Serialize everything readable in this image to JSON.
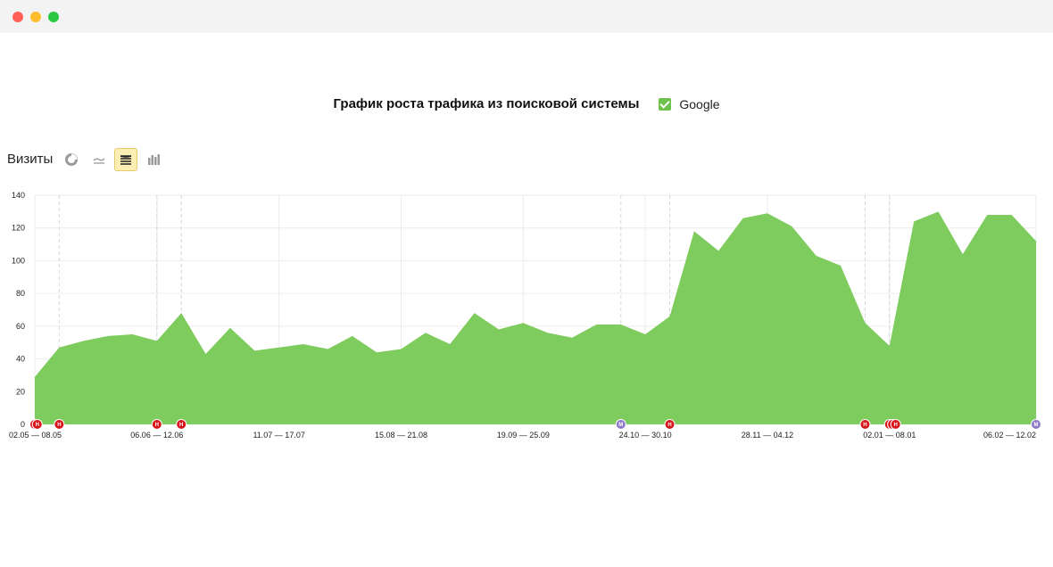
{
  "window": {
    "controls": [
      "close",
      "minimize",
      "zoom"
    ]
  },
  "colors": {
    "area": "#7ecb5e",
    "grid": "#ececec",
    "marker_red": "#d7141a",
    "marker_purple": "#8e78c8",
    "legend_check": "#6cc24a",
    "active_button": "#fdeeb4"
  },
  "header": {
    "title": "График роста трафика из поисковой системы",
    "legend_label": "Google",
    "legend_checked": true
  },
  "toolbar": {
    "metric_label": "Визиты",
    "buttons": [
      {
        "icon": "pie-chart-icon",
        "active": false
      },
      {
        "icon": "line-chart-icon",
        "active": false
      },
      {
        "icon": "stacked-area-icon",
        "active": true
      },
      {
        "icon": "bar-chart-icon",
        "active": false
      }
    ]
  },
  "chart_data": {
    "type": "area",
    "title": "График роста трафика из поисковой системы",
    "ylim": [
      0,
      140
    ],
    "yticks": [
      0,
      20,
      40,
      60,
      80,
      100,
      120,
      140
    ],
    "grid": true,
    "legend": "top",
    "series": [
      {
        "name": "Google",
        "values": [
          29,
          47,
          51,
          54,
          55,
          51,
          68,
          43,
          59,
          45,
          47,
          49,
          46,
          54,
          44,
          46,
          56,
          49,
          68,
          58,
          62,
          56,
          53,
          61,
          61,
          55,
          66,
          118,
          106,
          126,
          129,
          121,
          103,
          97,
          62,
          48,
          124,
          130,
          104,
          128,
          128,
          112
        ]
      }
    ],
    "x_tick_labels": [
      {
        "index": 0,
        "label": "02.05 — 08.05"
      },
      {
        "index": 5,
        "label": "06.06 — 12.06"
      },
      {
        "index": 10,
        "label": "11.07 — 17.07"
      },
      {
        "index": 15,
        "label": "15.08 — 21.08"
      },
      {
        "index": 20,
        "label": "19.09 — 25.09"
      },
      {
        "index": 25,
        "label": "24.10 — 30.10"
      },
      {
        "index": 30,
        "label": "28.11 — 04.12"
      },
      {
        "index": 35,
        "label": "02.01 — 08.01"
      },
      {
        "index": 41,
        "label": "06.02 — 12.02"
      }
    ],
    "markers": [
      {
        "at": 0,
        "type": "red",
        "label": "Н"
      },
      {
        "at": 0.1,
        "type": "red",
        "label": "Н"
      },
      {
        "at": 1,
        "type": "red",
        "label": "Н"
      },
      {
        "at": 5,
        "type": "red",
        "label": "Н"
      },
      {
        "at": 6,
        "type": "red",
        "label": "Н"
      },
      {
        "at": 24,
        "type": "purple",
        "label": "М"
      },
      {
        "at": 26,
        "type": "red",
        "label": "Н"
      },
      {
        "at": 34,
        "type": "red",
        "label": "Н"
      },
      {
        "at": 35,
        "type": "red",
        "label": "Н"
      },
      {
        "at": 35.12,
        "type": "red",
        "label": "Н"
      },
      {
        "at": 35.25,
        "type": "red",
        "label": "Н"
      },
      {
        "at": 41,
        "type": "purple",
        "label": "М"
      }
    ],
    "event_lines": [
      1,
      5,
      6,
      24,
      26,
      34,
      35
    ]
  }
}
